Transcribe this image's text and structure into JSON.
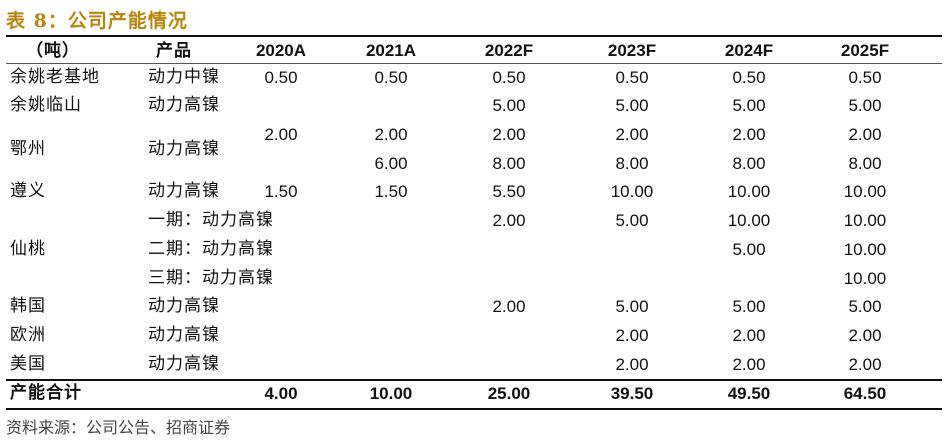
{
  "title": "表 8：公司产能情况",
  "header": {
    "unit": "（吨）",
    "product": "产品",
    "years": [
      "2020A",
      "2021A",
      "2022F",
      "2023F",
      "2024F",
      "2025F"
    ]
  },
  "rows": [
    {
      "site": "余姚老基地",
      "product": "动力中镍",
      "values": [
        "0.50",
        "0.50",
        "0.50",
        "0.50",
        "0.50",
        "0.50"
      ]
    },
    {
      "site": "余姚临山",
      "product": "动力高镍",
      "values": [
        "",
        "",
        "5.00",
        "5.00",
        "5.00",
        "5.00"
      ]
    },
    {
      "site": "",
      "product": "",
      "values": [
        "2.00",
        "2.00",
        "2.00",
        "2.00",
        "2.00",
        "2.00"
      ]
    },
    {
      "site": "鄂州",
      "product": "动力高镍",
      "values": [
        "",
        "",
        "",
        "",
        "",
        ""
      ]
    },
    {
      "site": "",
      "product": "",
      "values": [
        "",
        "6.00",
        "8.00",
        "8.00",
        "8.00",
        "8.00"
      ]
    },
    {
      "site": "遵义",
      "product": "动力高镍",
      "values": [
        "1.50",
        "1.50",
        "5.50",
        "10.00",
        "10.00",
        "10.00"
      ]
    },
    {
      "site": "",
      "product": "一期：动力高镍",
      "values": [
        "",
        "",
        "2.00",
        "5.00",
        "10.00",
        "10.00"
      ]
    },
    {
      "site": "仙桃",
      "product": "二期：动力高镍",
      "values": [
        "",
        "",
        "",
        "",
        "5.00",
        "10.00"
      ]
    },
    {
      "site": "",
      "product": "三期：动力高镍",
      "values": [
        "",
        "",
        "",
        "",
        "",
        "10.00"
      ]
    },
    {
      "site": "韩国",
      "product": "动力高镍",
      "values": [
        "",
        "",
        "2.00",
        "5.00",
        "5.00",
        "5.00"
      ]
    },
    {
      "site": "欧洲",
      "product": "动力高镍",
      "values": [
        "",
        "",
        "",
        "2.00",
        "2.00",
        "2.00"
      ]
    },
    {
      "site": "美国",
      "product": "动力高镍",
      "values": [
        "",
        "",
        "",
        "2.00",
        "2.00",
        "2.00"
      ]
    }
  ],
  "total": {
    "label": "产能合计",
    "values": [
      "4.00",
      "10.00",
      "25.00",
      "39.50",
      "49.50",
      "64.50"
    ]
  },
  "source": "资料来源：公司公告、招商证券",
  "colors": {
    "title": "#b8860b",
    "rule": "#111111"
  }
}
